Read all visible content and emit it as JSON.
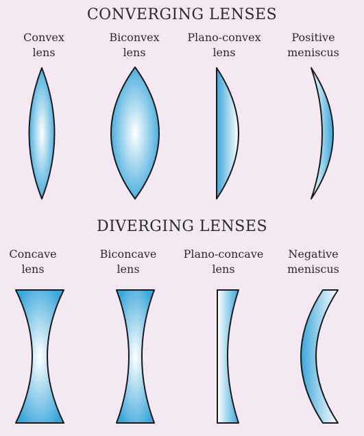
{
  "converging": {
    "heading": "CONVERGING LENSES",
    "lenses": [
      {
        "line1": "Convex",
        "line2": "lens"
      },
      {
        "line1": "Biconvex",
        "line2": "lens"
      },
      {
        "line1": "Plano-convex",
        "line2": "lens"
      },
      {
        "line1": "Positive",
        "line2": "meniscus"
      }
    ]
  },
  "diverging": {
    "heading": "DIVERGING LENSES",
    "lenses": [
      {
        "line1": "Concave",
        "line2": "lens"
      },
      {
        "line1": "Biconcave",
        "line2": "lens"
      },
      {
        "line1": "Plano-concave",
        "line2": "lens"
      },
      {
        "line1": "Negative",
        "line2": "meniscus"
      }
    ]
  },
  "colors": {
    "background": "#f4e9f2",
    "lens_edge": "#3aa6da",
    "lens_center": "#ffffff",
    "outline": "#1a1a1a"
  }
}
